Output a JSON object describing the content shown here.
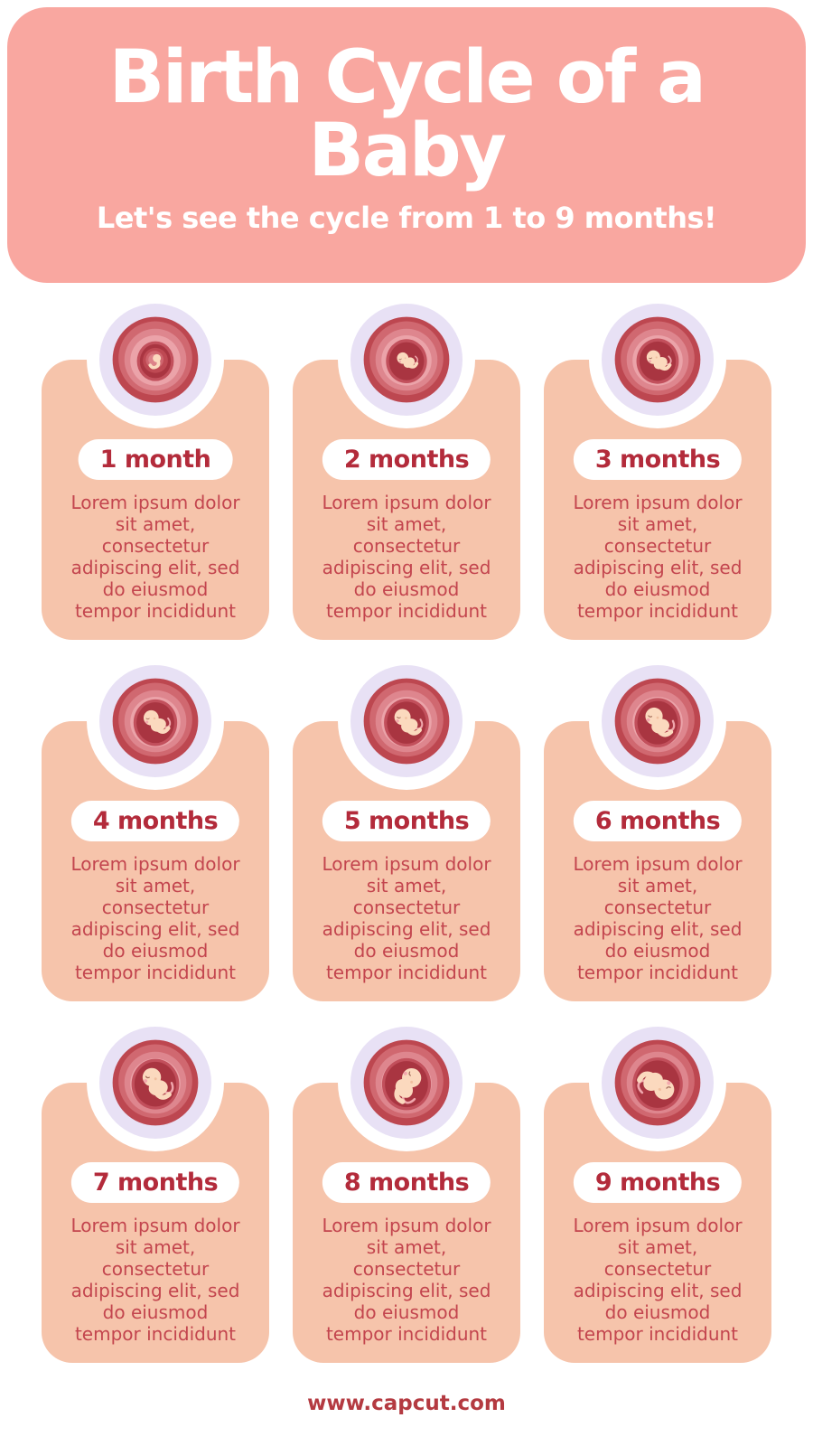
{
  "header": {
    "title": "Birth Cycle of a Baby",
    "subtitle": "Let's see the cycle from 1 to 9 months!"
  },
  "cards": [
    {
      "label": "1 month",
      "image": "fetus-in-womb-month-1",
      "description_lines": [
        "Lorem ipsum dolor",
        "sit amet,",
        "consectetur",
        "adipiscing elit, sed",
        "do eiusmod",
        "tempor incididunt"
      ]
    },
    {
      "label": "2 months",
      "image": "fetus-in-womb-month-2",
      "description_lines": [
        "Lorem ipsum dolor",
        "sit amet,",
        "consectetur",
        "adipiscing elit, sed",
        "do eiusmod",
        "tempor incididunt"
      ]
    },
    {
      "label": "3 months",
      "image": "fetus-in-womb-month-3",
      "description_lines": [
        "Lorem ipsum dolor",
        "sit amet,",
        "consectetur",
        "adipiscing elit, sed",
        "do eiusmod",
        "tempor incididunt"
      ]
    },
    {
      "label": "4 months",
      "image": "fetus-in-womb-month-4",
      "description_lines": [
        "Lorem ipsum dolor",
        "sit amet,",
        "consectetur",
        "adipiscing elit, sed",
        "do eiusmod",
        "tempor incididunt"
      ]
    },
    {
      "label": "5 months",
      "image": "fetus-in-womb-month-5",
      "description_lines": [
        "Lorem ipsum dolor",
        "sit amet,",
        "consectetur",
        "adipiscing elit, sed",
        "do eiusmod",
        "tempor incididunt"
      ]
    },
    {
      "label": "6 months",
      "image": "fetus-in-womb-month-6",
      "description_lines": [
        "Lorem ipsum dolor",
        "sit amet,",
        "consectetur",
        "adipiscing elit, sed",
        "do eiusmod",
        "tempor incididunt"
      ]
    },
    {
      "label": "7 months",
      "image": "fetus-in-womb-month-7",
      "description_lines": [
        "Lorem ipsum dolor",
        "sit amet,",
        "consectetur",
        "adipiscing elit, sed",
        "do eiusmod",
        "tempor incididunt"
      ]
    },
    {
      "label": "8 months",
      "image": "fetus-in-womb-month-8",
      "description_lines": [
        "Lorem ipsum dolor",
        "sit amet,",
        "consectetur",
        "adipiscing elit, sed",
        "do eiusmod",
        "tempor incididunt"
      ]
    },
    {
      "label": "9 months",
      "image": "fetus-in-womb-month-9",
      "description_lines": [
        "Lorem ipsum dolor",
        "sit amet,",
        "consectetur",
        "adipiscing elit, sed",
        "do eiusmod",
        "tempor incididunt"
      ]
    }
  ],
  "footer": {
    "website": "www.capcut.com"
  },
  "colors": {
    "header_bg": "#F9A7A0",
    "header_text": "#FFFFFF",
    "card_bg": "#F6C4AB",
    "ring_bg": "#E8E1F5",
    "pill_bg": "#FFFFFF",
    "label_color": "#B32B3B",
    "body_text": "#C3454E",
    "footer_color": "#B43A41",
    "womb_outer": "#BD4750",
    "womb_cavity": "#A93541",
    "fetus_skin": "#FBD9BE",
    "page_bg": "#FFFFFF"
  }
}
